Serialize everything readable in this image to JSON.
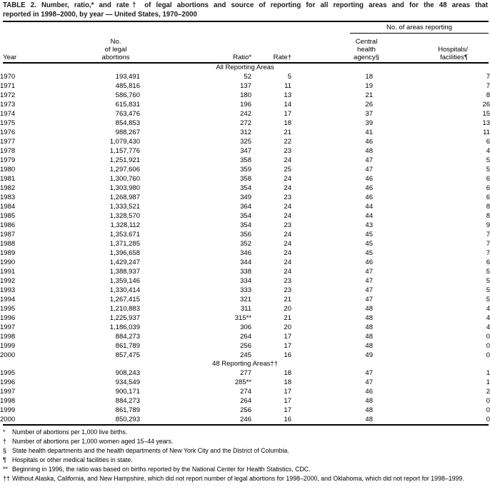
{
  "title": {
    "line1": "TABLE 2. Number, ratio,* and rate† of legal abortions and source of reporting for all reporting areas and for the 48 areas that",
    "line2": "reported in 1998–2000, by year — United States, 1970–2000"
  },
  "table": {
    "spanner_label": "No. of areas reporting",
    "headers": {
      "year": "Year",
      "number": "No.\nof legal\nabortions",
      "ratio": "Ratio*",
      "rate": "Rate†",
      "central": "Central\nhealth\nagency§",
      "hospitals": "Hospitals/\nfacilities¶"
    },
    "sections": [
      {
        "label": "All Reporting Areas",
        "rows": [
          [
            "1970",
            "193,491",
            "52",
            "5",
            "18",
            "7"
          ],
          [
            "1971",
            "485,816",
            "137",
            "11",
            "19",
            "7"
          ],
          [
            "1972",
            "586,760",
            "180",
            "13",
            "21",
            "8"
          ],
          [
            "1973",
            "615,831",
            "196",
            "14",
            "26",
            "26"
          ],
          [
            "1974",
            "763,476",
            "242",
            "17",
            "37",
            "15"
          ],
          [
            "1975",
            "854,853",
            "272",
            "18",
            "39",
            "13"
          ],
          [
            "1976",
            "988,267",
            "312",
            "21",
            "41",
            "11"
          ],
          [
            "1977",
            "1,079,430",
            "325",
            "22",
            "46",
            "6"
          ],
          [
            "1978",
            "1,157,776",
            "347",
            "23",
            "48",
            "4"
          ],
          [
            "1979",
            "1,251,921",
            "358",
            "24",
            "47",
            "5"
          ],
          [
            "1980",
            "1,297,606",
            "359",
            "25",
            "47",
            "5"
          ],
          [
            "1981",
            "1,300,760",
            "358",
            "24",
            "46",
            "6"
          ],
          [
            "1982",
            "1,303,980",
            "354",
            "24",
            "46",
            "6"
          ],
          [
            "1983",
            "1,268,987",
            "349",
            "23",
            "46",
            "6"
          ],
          [
            "1984",
            "1,333,521",
            "364",
            "24",
            "44",
            "8"
          ],
          [
            "1985",
            "1,328,570",
            "354",
            "24",
            "44",
            "8"
          ],
          [
            "1986",
            "1,328,112",
            "354",
            "23",
            "43",
            "9"
          ],
          [
            "1987",
            "1,353,671",
            "356",
            "24",
            "45",
            "7"
          ],
          [
            "1988",
            "1,371,285",
            "352",
            "24",
            "45",
            "7"
          ],
          [
            "1989",
            "1,396,658",
            "346",
            "24",
            "45",
            "7"
          ],
          [
            "1990",
            "1,429,247",
            "344",
            "24",
            "46",
            "6"
          ],
          [
            "1991",
            "1,388,937",
            "338",
            "24",
            "47",
            "5"
          ],
          [
            "1992",
            "1,359,146",
            "334",
            "23",
            "47",
            "5"
          ],
          [
            "1993",
            "1,330,414",
            "333",
            "23",
            "47",
            "5"
          ],
          [
            "1994",
            "1,267,415",
            "321",
            "21",
            "47",
            "5"
          ],
          [
            "1995",
            "1,210,883",
            "311",
            "20",
            "48",
            "4"
          ],
          [
            "1996",
            "1,225,937",
            "315**",
            "21",
            "48",
            "4"
          ],
          [
            "1997",
            "1,186,039",
            "306",
            "20",
            "48",
            "4"
          ],
          [
            "1998",
            "884,273",
            "264",
            "17",
            "48",
            "0"
          ],
          [
            "1999",
            "861,789",
            "256",
            "17",
            "48",
            "0"
          ],
          [
            "2000",
            "857,475",
            "245",
            "16",
            "49",
            "0"
          ]
        ]
      },
      {
        "label": "48 Reporting Areas††",
        "rows": [
          [
            "1995",
            "908,243",
            "277",
            "18",
            "47",
            "1"
          ],
          [
            "1996",
            "934,549",
            "285**",
            "18",
            "47",
            "1"
          ],
          [
            "1997",
            "900,171",
            "274",
            "17",
            "46",
            "2"
          ],
          [
            "1998",
            "884,273",
            "264",
            "17",
            "48",
            "0"
          ],
          [
            "1999",
            "861,789",
            "256",
            "17",
            "48",
            "0"
          ],
          [
            "2000",
            "850,293",
            "246",
            "16",
            "48",
            "0"
          ]
        ]
      }
    ]
  },
  "footnotes": [
    {
      "marker": "*",
      "text": "Number of abortions per 1,000 live births."
    },
    {
      "marker": "†",
      "text": "Number of abortions per 1,000 women aged 15–44 years."
    },
    {
      "marker": "§",
      "text": "State health departments and the health departments of New York City and the District of Columbia."
    },
    {
      "marker": "¶",
      "text": "Hospitals or other medical facilities in state."
    },
    {
      "marker": "**",
      "text": "Beginning in 1996, the ratio was based on births reported by the National Center for Health Statistics, CDC."
    },
    {
      "marker": "††",
      "text": "Without Alaska, California, and New Hampshire, which did not report number of legal abortions for 1998–2000, and Oklahoma, which did not report for 1998–1999."
    }
  ]
}
